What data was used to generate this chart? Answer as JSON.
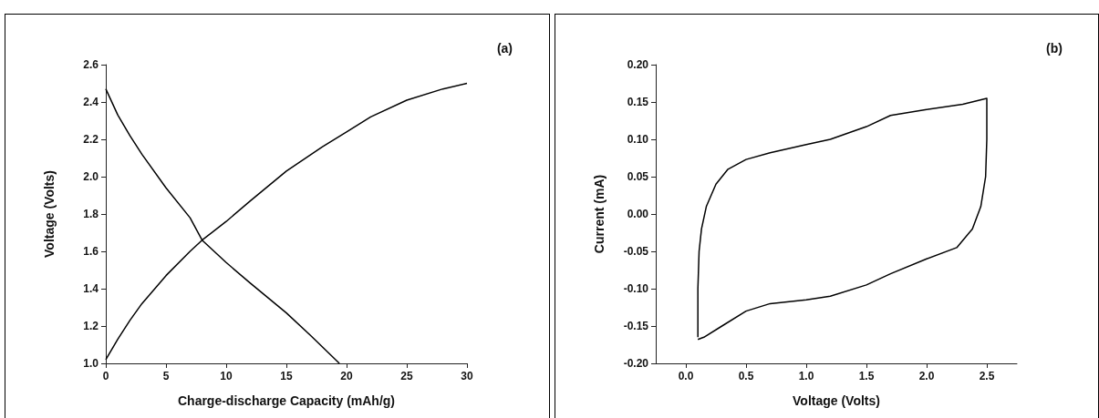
{
  "chart_data": [
    {
      "type": "line",
      "xlabel": "Charge-discharge Capacity (mAh/g)",
      "ylabel": "Voltage (Volts)",
      "annotations": [
        "(a)"
      ],
      "xlim": [
        0,
        30
      ],
      "ylim": [
        1.0,
        2.6
      ],
      "xticks": [
        0,
        5,
        10,
        15,
        20,
        25,
        30
      ],
      "yticks": [
        {
          "value": 1.0,
          "label": "1.0"
        },
        {
          "value": 1.2,
          "label": "1.2"
        },
        {
          "value": 1.4,
          "label": "1.4"
        },
        {
          "value": 1.6,
          "label": "1.6"
        },
        {
          "value": 1.8,
          "label": "1.8"
        },
        {
          "value": 2.0,
          "label": "2.0"
        },
        {
          "value": 2.2,
          "label": "2.2"
        },
        {
          "value": 2.4,
          "label": "2.4"
        },
        {
          "value": 2.6,
          "label": "2.6"
        }
      ],
      "grid": false,
      "series": [
        {
          "color": "#000000",
          "x": [
            0,
            1,
            2,
            3,
            5,
            7,
            8,
            10,
            12,
            15,
            18,
            20,
            22,
            25,
            28,
            30
          ],
          "values": [
            1.02,
            1.13,
            1.23,
            1.32,
            1.47,
            1.6,
            1.66,
            1.76,
            1.87,
            2.03,
            2.16,
            2.24,
            2.32,
            2.41,
            2.47,
            2.5
          ]
        },
        {
          "color": "#000000",
          "x": [
            0,
            1,
            2,
            3,
            5,
            7,
            8,
            10,
            12,
            15,
            17,
            19.4
          ],
          "values": [
            2.47,
            2.33,
            2.22,
            2.12,
            1.94,
            1.78,
            1.66,
            1.54,
            1.43,
            1.27,
            1.15,
            1.0
          ]
        }
      ]
    },
    {
      "type": "line",
      "xlabel": "Voltage (Volts)",
      "ylabel": "Current (mA)",
      "annotations": [
        "(b)"
      ],
      "xlim": [
        -0.25,
        2.75
      ],
      "ylim": [
        -0.2,
        0.2
      ],
      "xticks": [
        {
          "value": 0,
          "label": "0.0"
        },
        {
          "value": 0.5,
          "label": "0.5"
        },
        {
          "value": 1.0,
          "label": "1.0"
        },
        {
          "value": 1.5,
          "label": "1.5"
        },
        {
          "value": 2.0,
          "label": "2.0"
        },
        {
          "value": 2.5,
          "label": "2.5"
        }
      ],
      "yticks": [
        {
          "value": -0.2,
          "label": "-0.20"
        },
        {
          "value": -0.15,
          "label": "-0.15"
        },
        {
          "value": -0.1,
          "label": "-0.10"
        },
        {
          "value": -0.05,
          "label": "-0.05"
        },
        {
          "value": 0,
          "label": "0.00"
        },
        {
          "value": 0.05,
          "label": "0.05"
        },
        {
          "value": 0.1,
          "label": "0.10"
        },
        {
          "value": 0.15,
          "label": "0.15"
        },
        {
          "value": 0.2,
          "label": "0.20"
        }
      ],
      "grid": false,
      "series": [
        {
          "color": "#000000",
          "x": [
            0.1,
            0.1,
            0.11,
            0.13,
            0.17,
            0.25,
            0.35,
            0.5,
            0.7,
            1.0,
            1.2,
            1.5,
            1.7,
            2.0,
            2.3,
            2.5,
            2.5,
            2.49,
            2.45,
            2.38,
            2.25,
            2.0,
            1.7,
            1.5,
            1.2,
            1.0,
            0.7,
            0.5,
            0.3,
            0.15,
            0.1
          ],
          "values": [
            -0.165,
            -0.1,
            -0.05,
            -0.02,
            0.01,
            0.04,
            0.06,
            0.073,
            0.082,
            0.093,
            0.1,
            0.117,
            0.132,
            0.14,
            0.147,
            0.155,
            0.1,
            0.05,
            0.01,
            -0.02,
            -0.045,
            -0.06,
            -0.08,
            -0.095,
            -0.11,
            -0.115,
            -0.12,
            -0.13,
            -0.15,
            -0.165,
            -0.168
          ]
        }
      ]
    }
  ]
}
